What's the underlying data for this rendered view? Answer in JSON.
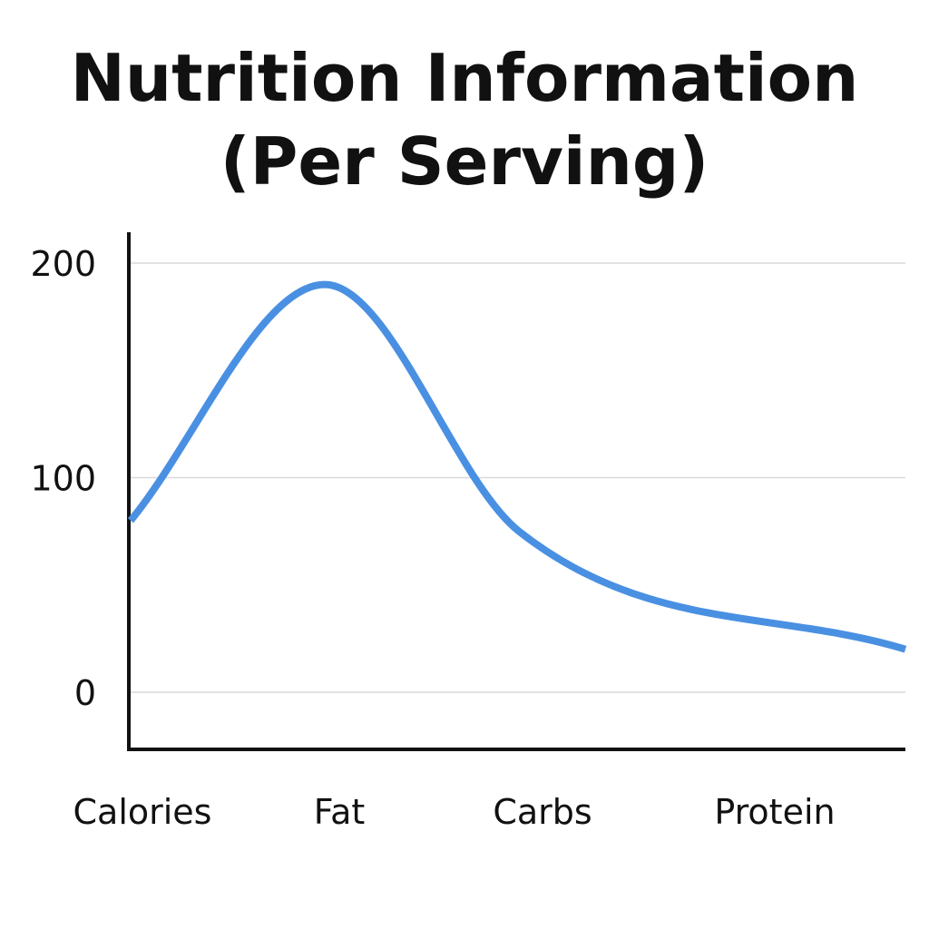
{
  "chart_data": {
    "type": "line",
    "title_lines": [
      "Nutrition Information",
      "(Per Serving)"
    ],
    "categories": [
      "Calories",
      "Fat",
      "Carbs",
      "Protein"
    ],
    "series": [
      {
        "values": [
          80,
          190,
          75,
          20
        ]
      }
    ],
    "y_ticks": [
      "0",
      "100",
      "200"
    ],
    "ylim": [
      0,
      200
    ],
    "xlabel": "",
    "ylabel": "",
    "grid": true,
    "legend": "none",
    "smooth": true
  },
  "colors": {
    "line": "#4a90e2",
    "axis": "#111111",
    "grid": "#d9d9d9",
    "text": "#111111"
  }
}
